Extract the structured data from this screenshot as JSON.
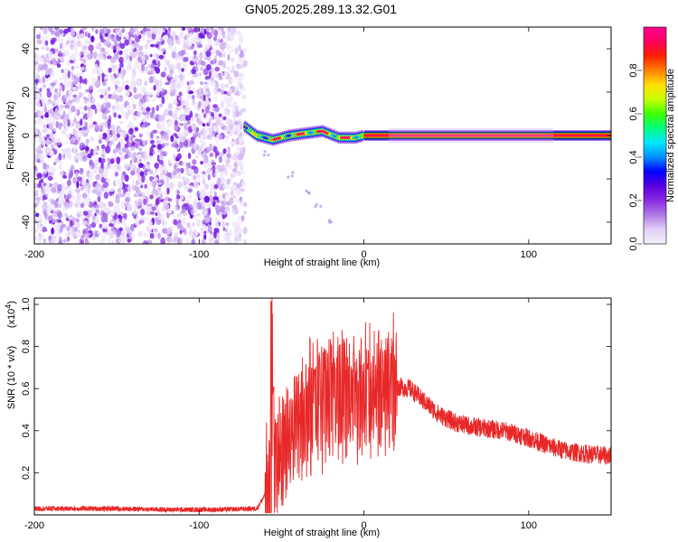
{
  "title": "GN05.2025.289.13.32.G01",
  "chart_data": [
    {
      "type": "heatmap",
      "xlabel": "Height of straight line (km)",
      "ylabel": "Frequency (Hz)",
      "xlim": [
        -200,
        150
      ],
      "ylim": [
        -50,
        50
      ],
      "xticks": [
        -200,
        -100,
        0,
        100
      ],
      "yticks": [
        -40,
        -20,
        0,
        20,
        40
      ],
      "colorbar": {
        "label": "Normalized spectral amplitude",
        "range": [
          0,
          1
        ],
        "ticks": [
          "0.0",
          "0.2",
          "0.4",
          "0.6",
          "0.8"
        ],
        "colors": [
          "#f4f0fb",
          "#e2d0f6",
          "#b07ae6",
          "#8a2be2",
          "#5a00e0",
          "#0000ff",
          "#0090ff",
          "#00e8ff",
          "#00ff80",
          "#40ff00",
          "#c8ff00",
          "#ffe000",
          "#ff8000",
          "#ff2000",
          "#ff0060",
          "#ff0090"
        ]
      },
      "noise_region": {
        "x": [
          -200,
          -72
        ],
        "y": [
          -50,
          50
        ]
      },
      "signal_track": [
        {
          "x": -72,
          "y": 4,
          "amp": 0.45
        },
        {
          "x": -65,
          "y": 0,
          "amp": 0.5
        },
        {
          "x": -55,
          "y": -2,
          "amp": 0.7
        },
        {
          "x": -45,
          "y": 0,
          "amp": 0.6
        },
        {
          "x": -35,
          "y": 1,
          "amp": 0.75
        },
        {
          "x": -25,
          "y": 2,
          "amp": 0.8
        },
        {
          "x": -15,
          "y": -1,
          "amp": 0.75
        },
        {
          "x": -5,
          "y": -1,
          "amp": 0.7
        },
        {
          "x": 0,
          "y": 0,
          "amp": 0.9
        },
        {
          "x": 150,
          "y": 0,
          "amp": 0.95
        }
      ],
      "secondary_trace": [
        {
          "x": -60,
          "y": -8
        },
        {
          "x": -45,
          "y": -18
        },
        {
          "x": -35,
          "y": -26
        },
        {
          "x": -28,
          "y": -32
        },
        {
          "x": -20,
          "y": -40
        }
      ]
    },
    {
      "type": "line",
      "xlabel": "Height of straight line (km)",
      "ylabel": "SNR (10 * v/v)",
      "y_multiplier": "(x10",
      "y_multiplier_exp": "4",
      "xlim": [
        -200,
        150
      ],
      "ylim": [
        0,
        1.03
      ],
      "xticks": [
        -200,
        -100,
        0,
        100
      ],
      "yticks": [
        "0.2",
        "0.4",
        "0.6",
        "0.8",
        "1.0"
      ],
      "series_color": "#e82828",
      "envelope": [
        {
          "x": -200,
          "y": 0.03
        },
        {
          "x": -180,
          "y": 0.03
        },
        {
          "x": -150,
          "y": 0.03
        },
        {
          "x": -120,
          "y": 0.025
        },
        {
          "x": -90,
          "y": 0.025
        },
        {
          "x": -65,
          "y": 0.03
        },
        {
          "x": -58,
          "y": 0.12
        },
        {
          "x": -55,
          "y": 0.28
        },
        {
          "x": -50,
          "y": 0.32
        },
        {
          "x": -45,
          "y": 0.36
        },
        {
          "x": -40,
          "y": 0.42
        },
        {
          "x": -35,
          "y": 0.48
        },
        {
          "x": -30,
          "y": 0.52
        },
        {
          "x": -25,
          "y": 0.55
        },
        {
          "x": -20,
          "y": 0.57
        },
        {
          "x": -15,
          "y": 0.56
        },
        {
          "x": -10,
          "y": 0.56
        },
        {
          "x": -5,
          "y": 0.57
        },
        {
          "x": 0,
          "y": 0.58
        },
        {
          "x": 10,
          "y": 0.6
        },
        {
          "x": 20,
          "y": 0.61
        },
        {
          "x": 28,
          "y": 0.6
        },
        {
          "x": 35,
          "y": 0.55
        },
        {
          "x": 45,
          "y": 0.48
        },
        {
          "x": 55,
          "y": 0.44
        },
        {
          "x": 65,
          "y": 0.42
        },
        {
          "x": 75,
          "y": 0.41
        },
        {
          "x": 85,
          "y": 0.4
        },
        {
          "x": 95,
          "y": 0.38
        },
        {
          "x": 105,
          "y": 0.35
        },
        {
          "x": 115,
          "y": 0.32
        },
        {
          "x": 125,
          "y": 0.3
        },
        {
          "x": 135,
          "y": 0.29
        },
        {
          "x": 150,
          "y": 0.28
        }
      ],
      "peaks": [
        {
          "x": -56,
          "y": 1.03
        },
        {
          "x": -55,
          "y": 0.62
        },
        {
          "x": -38,
          "y": 0.62
        },
        {
          "x": -30,
          "y": 0.72
        },
        {
          "x": -27,
          "y": 0.78
        },
        {
          "x": -24,
          "y": 0.8
        },
        {
          "x": -20,
          "y": 0.85
        },
        {
          "x": -18,
          "y": 0.75
        },
        {
          "x": -12,
          "y": 0.84
        },
        {
          "x": -6,
          "y": 0.8
        },
        {
          "x": 2,
          "y": 0.72
        },
        {
          "x": 16,
          "y": 0.68
        }
      ]
    }
  ]
}
